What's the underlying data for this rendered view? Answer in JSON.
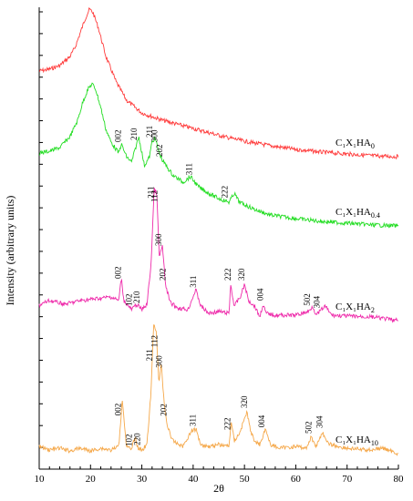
{
  "chart_data": {
    "type": "line",
    "title": "",
    "xlabel": "2θ",
    "ylabel": "Intensity (arbitrary units)",
    "xlim": [
      10,
      80
    ],
    "x_ticks": [
      10,
      20,
      30,
      40,
      50,
      60,
      70,
      80
    ],
    "x_tick_labels": [
      "10",
      "20",
      "30",
      "40",
      "50",
      "60",
      "70",
      "80"
    ],
    "grid": false,
    "legend": "inline labels at right of each trace",
    "series": [
      {
        "name_main": "C₁X₁HA",
        "name_sub": "0",
        "color": "#ff3b3b",
        "baseline": 172,
        "points": [
          [
            10,
            78
          ],
          [
            12,
            76
          ],
          [
            14,
            72
          ],
          [
            16,
            62
          ],
          [
            17,
            52
          ],
          [
            18,
            36
          ],
          [
            19,
            20
          ],
          [
            19.8,
            10
          ],
          [
            20.5,
            14
          ],
          [
            21.5,
            30
          ],
          [
            23,
            62
          ],
          [
            25,
            90
          ],
          [
            27,
            110
          ],
          [
            30,
            124
          ],
          [
            34,
            132
          ],
          [
            38,
            138
          ],
          [
            42,
            144
          ],
          [
            46,
            150
          ],
          [
            50,
            155
          ],
          [
            55,
            160
          ],
          [
            60,
            164
          ],
          [
            65,
            167
          ],
          [
            70,
            169
          ],
          [
            75,
            171
          ],
          [
            80,
            172
          ]
        ],
        "peaks": []
      },
      {
        "name_main": "C₁X₁HA",
        "name_sub": "0.4",
        "color": "#22dd22",
        "baseline": 248,
        "points": [
          [
            10,
            168
          ],
          [
            12,
            166
          ],
          [
            14,
            162
          ],
          [
            16,
            150
          ],
          [
            17.5,
            132
          ],
          [
            18.5,
            112
          ],
          [
            19.5,
            98
          ],
          [
            20.3,
            92
          ],
          [
            21,
            98
          ],
          [
            22,
            118
          ],
          [
            23,
            142
          ],
          [
            24,
            156
          ],
          [
            25.5,
            168
          ],
          [
            26,
            158
          ],
          [
            27,
            172
          ],
          [
            28,
            178
          ],
          [
            29.4,
            150
          ],
          [
            30.5,
            182
          ],
          [
            31.5,
            172
          ],
          [
            32,
            155
          ],
          [
            32.6,
            152
          ],
          [
            33.3,
            166
          ],
          [
            34,
            176
          ],
          [
            35,
            184
          ],
          [
            36,
            192
          ],
          [
            37,
            196
          ],
          [
            38,
            200
          ],
          [
            39.5,
            194
          ],
          [
            41,
            205
          ],
          [
            43,
            212
          ],
          [
            45,
            218
          ],
          [
            47,
            222
          ],
          [
            48,
            212
          ],
          [
            49,
            222
          ],
          [
            52,
            230
          ],
          [
            55,
            236
          ],
          [
            60,
            240
          ],
          [
            65,
            243
          ],
          [
            70,
            245
          ],
          [
            75,
            247
          ],
          [
            80,
            248
          ]
        ],
        "peaks": [
          {
            "label": "002",
            "x": 25.9
          },
          {
            "label": "210",
            "x": 29.0
          },
          {
            "label": "211",
            "x": 32.0
          },
          {
            "label": "300",
            "x": 33.0
          },
          {
            "label": "202",
            "x": 34.0
          },
          {
            "label": "311",
            "x": 39.8
          },
          {
            "label": "222",
            "x": 46.7
          }
        ]
      },
      {
        "name_main": "C₁X₁HA",
        "name_sub": "2",
        "color": "#ee2aaa",
        "baseline": 352,
        "points": [
          [
            10,
            335
          ],
          [
            12,
            330
          ],
          [
            15,
            334
          ],
          [
            18,
            330
          ],
          [
            21,
            328
          ],
          [
            24,
            326
          ],
          [
            25.5,
            330
          ],
          [
            26,
            305
          ],
          [
            26.5,
            330
          ],
          [
            28,
            340
          ],
          [
            29,
            334
          ],
          [
            30,
            340
          ],
          [
            31,
            334
          ],
          [
            31.8,
            290
          ],
          [
            32.4,
            208
          ],
          [
            32.9,
            212
          ],
          [
            33.4,
            282
          ],
          [
            34,
            270
          ],
          [
            34.6,
            312
          ],
          [
            35.5,
            332
          ],
          [
            37,
            338
          ],
          [
            39,
            340
          ],
          [
            40.5,
            318
          ],
          [
            41.5,
            336
          ],
          [
            43,
            344
          ],
          [
            45,
            342
          ],
          [
            47,
            344
          ],
          [
            47.3,
            312
          ],
          [
            48,
            336
          ],
          [
            49.2,
            326
          ],
          [
            50,
            312
          ],
          [
            50.8,
            330
          ],
          [
            52,
            336
          ],
          [
            53,
            348
          ],
          [
            53.6,
            334
          ],
          [
            54.2,
            344
          ],
          [
            56,
            346
          ],
          [
            60,
            346
          ],
          [
            62.5,
            342
          ],
          [
            63.3,
            336
          ],
          [
            64,
            346
          ],
          [
            65,
            340
          ],
          [
            65.7,
            336
          ],
          [
            67,
            346
          ],
          [
            70,
            347
          ],
          [
            75,
            348
          ],
          [
            80,
            352
          ]
        ],
        "peaks": [
          {
            "label": "002",
            "x": 25.9
          },
          {
            "label": "102",
            "x": 28.0
          },
          {
            "label": "210",
            "x": 29.5
          },
          {
            "label": "211",
            "x": 32.3
          },
          {
            "label": "112",
            "x": 33.0
          },
          {
            "label": "300",
            "x": 33.8
          },
          {
            "label": "202",
            "x": 34.6
          },
          {
            "label": "311",
            "x": 40.6
          },
          {
            "label": "222",
            "x": 47.3
          },
          {
            "label": "320",
            "x": 50.0
          },
          {
            "label": "004",
            "x": 53.6
          },
          {
            "label": "502",
            "x": 62.8
          },
          {
            "label": "304",
            "x": 64.6
          }
        ]
      },
      {
        "name_main": "C₁X₁HA",
        "name_sub": "10",
        "color": "#f5a84a",
        "baseline": 498,
        "points": [
          [
            10,
            490
          ],
          [
            12,
            494
          ],
          [
            14,
            492
          ],
          [
            16,
            495
          ],
          [
            18,
            492
          ],
          [
            20,
            495
          ],
          [
            22,
            492
          ],
          [
            24,
            494
          ],
          [
            25.5,
            490
          ],
          [
            26.2,
            438
          ],
          [
            27,
            490
          ],
          [
            28,
            494
          ],
          [
            28.6,
            480
          ],
          [
            29.3,
            492
          ],
          [
            30,
            494
          ],
          [
            31,
            488
          ],
          [
            31.8,
            430
          ],
          [
            32.3,
            356
          ],
          [
            32.8,
            362
          ],
          [
            33.3,
            420
          ],
          [
            33.8,
            400
          ],
          [
            34.4,
            446
          ],
          [
            35,
            468
          ],
          [
            36,
            484
          ],
          [
            38,
            490
          ],
          [
            39.8,
            472
          ],
          [
            40.6,
            472
          ],
          [
            41.5,
            488
          ],
          [
            43,
            490
          ],
          [
            45,
            488
          ],
          [
            47,
            490
          ],
          [
            47.4,
            462
          ],
          [
            48,
            484
          ],
          [
            49,
            476
          ],
          [
            50.5,
            452
          ],
          [
            51.2,
            474
          ],
          [
            52,
            484
          ],
          [
            53,
            488
          ],
          [
            54.1,
            470
          ],
          [
            55,
            488
          ],
          [
            57,
            492
          ],
          [
            60,
            490
          ],
          [
            62,
            492
          ],
          [
            63,
            480
          ],
          [
            64,
            490
          ],
          [
            65.2,
            474
          ],
          [
            66,
            486
          ],
          [
            68,
            490
          ],
          [
            70,
            492
          ],
          [
            74,
            494
          ],
          [
            77,
            492
          ],
          [
            80,
            498
          ]
        ],
        "peaks": [
          {
            "label": "002",
            "x": 25.9
          },
          {
            "label": "102",
            "x": 28.0
          },
          {
            "label": "220",
            "x": 29.6
          },
          {
            "label": "211",
            "x": 32.0
          },
          {
            "label": "112",
            "x": 33.0
          },
          {
            "label": "300",
            "x": 33.9
          },
          {
            "label": "202",
            "x": 34.8
          },
          {
            "label": "311",
            "x": 40.5
          },
          {
            "label": "222",
            "x": 47.2
          },
          {
            "label": "320",
            "x": 50.5
          },
          {
            "label": "004",
            "x": 53.9
          },
          {
            "label": "502",
            "x": 63.0
          },
          {
            "label": "304",
            "x": 65.2
          }
        ]
      }
    ]
  }
}
